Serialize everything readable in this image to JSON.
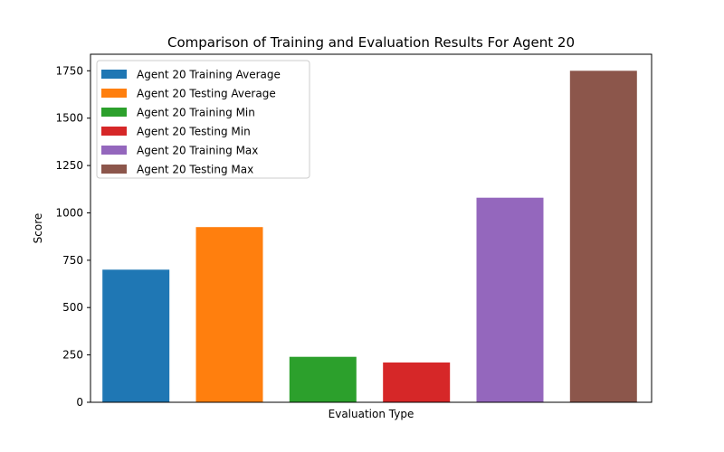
{
  "chart_data": {
    "type": "bar",
    "title": "Comparison of Training and Evaluation Results For Agent 20",
    "xlabel": "Evaluation Type",
    "ylabel": "Score",
    "ylim": [
      0,
      1837.5
    ],
    "yticks": [
      "0",
      "250",
      "500",
      "750",
      "1000",
      "1250",
      "1500",
      "1750"
    ],
    "grid": false,
    "legend_position": "top-left",
    "series": [
      {
        "name": "Agent 20 Training Average",
        "value": 700,
        "color": "#1f77b4"
      },
      {
        "name": "Agent 20 Testing Average",
        "value": 925,
        "color": "#ff7f0e"
      },
      {
        "name": "Agent 20 Training Min",
        "value": 240,
        "color": "#2ca02c"
      },
      {
        "name": "Agent 20 Testing Min",
        "value": 210,
        "color": "#d62728"
      },
      {
        "name": "Agent 20 Training Max",
        "value": 1080,
        "color": "#9467bd"
      },
      {
        "name": "Agent 20 Testing Max",
        "value": 1750,
        "color": "#8c564b"
      }
    ]
  }
}
